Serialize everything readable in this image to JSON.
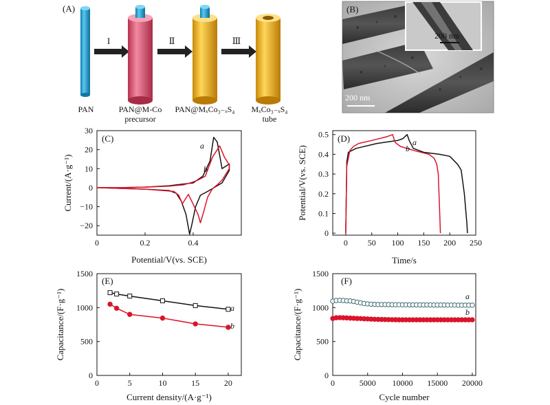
{
  "schematic": {
    "label": "(A)",
    "steps": [
      "I",
      "Ⅱ",
      "Ⅲ"
    ],
    "captions": [
      {
        "line1": "PAN",
        "line2": ""
      },
      {
        "line1": "PAN@M-Co",
        "line2": "precursor"
      },
      {
        "line1": "PAN@MₓCo₃₋ₓS₄",
        "line2": ""
      },
      {
        "line1": "MₓCo₃₋ₓS₄",
        "line2": "tube"
      }
    ],
    "colors": {
      "pan": "#1aa3d9",
      "precursor": "#e05a7a",
      "sulfide": "#f2b81c"
    }
  },
  "micrograph": {
    "label": "(B)",
    "scale_main": "200 nm",
    "scale_inset": "200 nm"
  },
  "chart_data": [
    {
      "panel": "(C)",
      "type": "line",
      "xlabel": "Potential/V(vs. SCE)",
      "ylabel": "Current/(A·g⁻¹)",
      "xlim": [
        0,
        0.6
      ],
      "ylim": [
        -25,
        30
      ],
      "xticks": [
        "0",
        "0.2",
        "0.4"
      ],
      "xtick_values": [
        0,
        0.2,
        0.4
      ],
      "yticks": [
        "−20",
        "−10",
        "0",
        "10",
        "20",
        "30"
      ],
      "ytick_values": [
        -20,
        -10,
        0,
        10,
        20,
        30
      ],
      "series": [
        {
          "name": "a",
          "color": "#111111",
          "x": [
            0,
            0.1,
            0.2,
            0.3,
            0.4,
            0.44,
            0.47,
            0.485,
            0.5,
            0.52,
            0.55,
            0.55,
            0.52,
            0.5,
            0.46,
            0.43,
            0.41,
            0.395,
            0.385,
            0.37,
            0.35,
            0.33,
            0.3,
            0.2,
            0.1,
            0
          ],
          "y": [
            0,
            0,
            0.3,
            1,
            2.5,
            6,
            14,
            26.5,
            24,
            10,
            12.5,
            9,
            2.5,
            1,
            -2,
            -4,
            -10,
            -19,
            -24.5,
            -14,
            -7,
            -3,
            -1.5,
            -0.8,
            -0.4,
            0
          ]
        },
        {
          "name": "b",
          "color": "#d9142b",
          "x": [
            0,
            0.1,
            0.2,
            0.3,
            0.36,
            0.4,
            0.42,
            0.45,
            0.48,
            0.51,
            0.53,
            0.55,
            0.55,
            0.52,
            0.5,
            0.48,
            0.46,
            0.445,
            0.43,
            0.42,
            0.38,
            0.355,
            0.34,
            0.32,
            0.2,
            0.1,
            0
          ],
          "y": [
            0,
            0,
            0.3,
            0.8,
            1.5,
            3,
            4,
            6,
            16,
            22,
            16,
            12,
            10,
            4,
            1.5,
            -0.5,
            -5,
            -12,
            -18.5,
            -14,
            -3.5,
            -8.5,
            -4,
            -2,
            -0.8,
            -0.4,
            0
          ]
        }
      ]
    },
    {
      "panel": "(D)",
      "type": "line",
      "xlabel": "Time/s",
      "ylabel": "Potential/V(vs. SCE)",
      "xlim": [
        -25,
        250
      ],
      "ylim": [
        -0.01,
        0.52
      ],
      "xticks": [
        "0",
        "50",
        "100",
        "150",
        "200",
        "250"
      ],
      "xtick_values": [
        0,
        50,
        100,
        150,
        200,
        250
      ],
      "yticks": [
        "0",
        "0.1",
        "0.2",
        "0.3",
        "0.4",
        "0.5"
      ],
      "ytick_values": [
        0,
        0.1,
        0.2,
        0.3,
        0.4,
        0.5
      ],
      "series": [
        {
          "name": "a",
          "color": "#111111",
          "x": [
            0,
            2,
            5,
            20,
            60,
            100,
            110,
            118,
            122,
            130,
            150,
            180,
            200,
            215,
            222,
            228,
            233,
            234
          ],
          "y": [
            0,
            0.36,
            0.41,
            0.43,
            0.455,
            0.47,
            0.48,
            0.5,
            0.47,
            0.43,
            0.41,
            0.4,
            0.39,
            0.35,
            0.32,
            0.2,
            0.05,
            0
          ]
        },
        {
          "name": "b",
          "color": "#d9142b",
          "x": [
            0,
            2,
            8,
            15,
            25,
            50,
            80,
            90,
            95,
            105,
            130,
            160,
            170,
            175,
            178,
            181,
            182
          ],
          "y": [
            0,
            0.34,
            0.42,
            0.44,
            0.455,
            0.47,
            0.49,
            0.5,
            0.46,
            0.44,
            0.42,
            0.4,
            0.38,
            0.35,
            0.3,
            0.08,
            0
          ]
        }
      ]
    },
    {
      "panel": "(E)",
      "type": "line",
      "xlabel": "Current density/(A·g⁻¹)",
      "ylabel": "Capacitance/(F·g⁻¹)",
      "xlim": [
        0,
        22
      ],
      "ylim": [
        0,
        1500
      ],
      "xticks": [
        "0",
        "5",
        "10",
        "15",
        "20"
      ],
      "xtick_values": [
        0,
        5,
        10,
        15,
        20
      ],
      "yticks": [
        "0",
        "500",
        "1000",
        "1500"
      ],
      "ytick_values": [
        0,
        500,
        1000,
        1500
      ],
      "series": [
        {
          "name": "a",
          "color": "#111111",
          "marker": "square",
          "x": [
            2,
            3,
            5,
            10,
            15,
            20
          ],
          "y": [
            1220,
            1200,
            1170,
            1100,
            1030,
            975
          ]
        },
        {
          "name": "b",
          "color": "#d9142b",
          "marker": "circle",
          "x": [
            2,
            3,
            5,
            10,
            15,
            20
          ],
          "y": [
            1050,
            990,
            900,
            845,
            760,
            710
          ]
        }
      ]
    },
    {
      "panel": "(F)",
      "type": "scatter",
      "xlabel": "Cycle number",
      "ylabel": "Capacitance/(F·g⁻¹)",
      "xlim": [
        0,
        20500
      ],
      "ylim": [
        0,
        1500
      ],
      "xticks": [
        "0",
        "5000",
        "10000",
        "15000",
        "20000"
      ],
      "xtick_values": [
        0,
        5000,
        10000,
        15000,
        20000
      ],
      "yticks": [
        "0",
        "500",
        "1000",
        "1500"
      ],
      "ytick_values": [
        0,
        500,
        1000,
        1500
      ],
      "series": [
        {
          "name": "a",
          "color": "#3d6f73",
          "marker": "open-circle",
          "x": [
            0,
            500,
            1000,
            1500,
            2000,
            2500,
            3000,
            3500,
            4000,
            4500,
            5000,
            5500,
            6000,
            6500,
            7000,
            7500,
            8000,
            8500,
            9000,
            9500,
            10000,
            10500,
            11000,
            11500,
            12000,
            12500,
            13000,
            13500,
            14000,
            14500,
            15000,
            15500,
            16000,
            16500,
            17000,
            17500,
            18000,
            18500,
            19000,
            19500,
            20000
          ],
          "y": [
            1095,
            1105,
            1108,
            1105,
            1100,
            1098,
            1090,
            1080,
            1070,
            1060,
            1055,
            1050,
            1048,
            1046,
            1045,
            1045,
            1044,
            1043,
            1042,
            1042,
            1041,
            1041,
            1040,
            1040,
            1040,
            1040,
            1039,
            1039,
            1039,
            1038,
            1038,
            1038,
            1038,
            1037,
            1037,
            1037,
            1036,
            1036,
            1036,
            1035,
            1035
          ]
        },
        {
          "name": "b",
          "color": "#d9142b",
          "marker": "filled-circle",
          "x": [
            0,
            500,
            1000,
            1500,
            2000,
            2500,
            3000,
            3500,
            4000,
            4500,
            5000,
            5500,
            6000,
            6500,
            7000,
            7500,
            8000,
            8500,
            9000,
            9500,
            10000,
            10500,
            11000,
            11500,
            12000,
            12500,
            13000,
            13500,
            14000,
            14500,
            15000,
            15500,
            16000,
            16500,
            17000,
            17500,
            18000,
            18500,
            19000,
            19500,
            20000
          ],
          "y": [
            840,
            850,
            852,
            850,
            848,
            845,
            843,
            840,
            838,
            835,
            833,
            830,
            828,
            826,
            825,
            824,
            823,
            822,
            821,
            820,
            820,
            820,
            820,
            820,
            820,
            820,
            820,
            820,
            820,
            820,
            820,
            820,
            820,
            820,
            820,
            820,
            820,
            820,
            820,
            820,
            820
          ]
        }
      ]
    }
  ]
}
